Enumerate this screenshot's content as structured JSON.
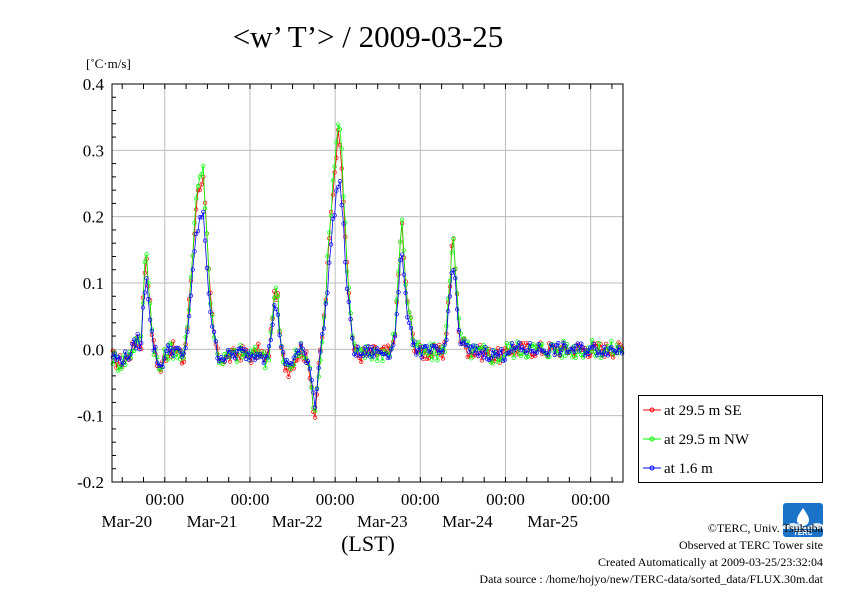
{
  "chart_data": {
    "type": "line",
    "title": "<w’ T’> / 2009-03-25",
    "ylabel": "[˚C·m/s]",
    "xlabel": "(LST)",
    "ylim": [
      -0.2,
      0.4
    ],
    "yticks": [
      "0.4",
      "0.3",
      "0.2",
      "0.1",
      "0.0",
      "-0.1",
      "-0.2"
    ],
    "ytick_values": [
      0.4,
      0.3,
      0.2,
      0.1,
      0.0,
      -0.1,
      -0.2
    ],
    "xlim_days": [
      19.38,
      25.38
    ],
    "xticks": [
      {
        "day": 20,
        "time": "00:00",
        "date": "Mar-20"
      },
      {
        "day": 21,
        "time": "00:00",
        "date": "Mar-21"
      },
      {
        "day": 22,
        "time": "00:00",
        "date": "Mar-22"
      },
      {
        "day": 23,
        "time": "00:00",
        "date": "Mar-23"
      },
      {
        "day": 24,
        "time": "00:00",
        "date": "Mar-24"
      },
      {
        "day": 25,
        "time": "00:00",
        "date": "Mar-25"
      }
    ],
    "grid": true,
    "legend_position": "right",
    "series": [
      {
        "name": "at 29.5 m SE",
        "color": "#ff0000"
      },
      {
        "name": "at 29.5 m NW",
        "color": "#00ff00"
      },
      {
        "name": "at 1.6 m",
        "color": "#0000ff"
      }
    ],
    "profile_points": [
      [
        19.38,
        -0.01
      ],
      [
        19.45,
        -0.02
      ],
      [
        19.55,
        -0.015
      ],
      [
        19.62,
        0.0
      ],
      [
        19.68,
        0.02
      ],
      [
        19.72,
        0.0
      ],
      [
        19.75,
        0.09
      ],
      [
        19.78,
        0.15
      ],
      [
        19.8,
        0.12
      ],
      [
        19.83,
        0.06
      ],
      [
        19.86,
        0.01
      ],
      [
        19.9,
        -0.01
      ],
      [
        19.93,
        -0.03
      ],
      [
        19.96,
        -0.03
      ],
      [
        20.0,
        -0.01
      ],
      [
        20.05,
        0.0
      ],
      [
        20.12,
        0.0
      ],
      [
        20.18,
        -0.01
      ],
      [
        20.22,
        -0.02
      ],
      [
        20.27,
        0.04
      ],
      [
        20.32,
        0.13
      ],
      [
        20.37,
        0.22
      ],
      [
        20.41,
        0.25
      ],
      [
        20.45,
        0.26
      ],
      [
        20.48,
        0.2
      ],
      [
        20.52,
        0.1
      ],
      [
        20.57,
        0.03
      ],
      [
        20.62,
        -0.01
      ],
      [
        20.7,
        -0.015
      ],
      [
        20.8,
        -0.01
      ],
      [
        20.9,
        -0.005
      ],
      [
        20.98,
        -0.01
      ],
      [
        21.05,
        -0.01
      ],
      [
        21.12,
        0.0
      ],
      [
        21.18,
        -0.02
      ],
      [
        21.23,
        0.0
      ],
      [
        21.26,
        0.05
      ],
      [
        21.29,
        0.08
      ],
      [
        21.32,
        0.09
      ],
      [
        21.36,
        0.0
      ],
      [
        21.4,
        -0.02
      ],
      [
        21.45,
        -0.03
      ],
      [
        21.5,
        -0.02
      ],
      [
        21.55,
        -0.01
      ],
      [
        21.6,
        0.0
      ],
      [
        21.65,
        -0.01
      ],
      [
        21.7,
        -0.03
      ],
      [
        21.73,
        -0.06
      ],
      [
        21.76,
        -0.11
      ],
      [
        21.8,
        -0.04
      ],
      [
        21.84,
        0.01
      ],
      [
        21.88,
        0.06
      ],
      [
        21.92,
        0.14
      ],
      [
        21.96,
        0.22
      ],
      [
        22.0,
        0.28
      ],
      [
        22.03,
        0.32
      ],
      [
        22.05,
        0.33
      ],
      [
        22.08,
        0.28
      ],
      [
        22.11,
        0.2
      ],
      [
        22.14,
        0.12
      ],
      [
        22.18,
        0.05
      ],
      [
        22.22,
        0.0
      ],
      [
        22.28,
        -0.01
      ],
      [
        22.38,
        -0.005
      ],
      [
        22.5,
        -0.005
      ],
      [
        22.6,
        -0.005
      ],
      [
        22.66,
        -0.005
      ],
      [
        22.7,
        0.03
      ],
      [
        22.73,
        0.07
      ],
      [
        22.75,
        0.13
      ],
      [
        22.77,
        0.17
      ],
      [
        22.79,
        0.2
      ],
      [
        22.81,
        0.12
      ],
      [
        22.84,
        0.08
      ],
      [
        22.88,
        0.05
      ],
      [
        22.91,
        0.02
      ],
      [
        22.95,
        0.0
      ],
      [
        23.0,
        -0.005
      ],
      [
        23.1,
        -0.005
      ],
      [
        23.2,
        -0.005
      ],
      [
        23.27,
        -0.005
      ],
      [
        23.3,
        0.02
      ],
      [
        23.33,
        0.07
      ],
      [
        23.36,
        0.12
      ],
      [
        23.38,
        0.18
      ],
      [
        23.4,
        0.15
      ],
      [
        23.43,
        0.08
      ],
      [
        23.46,
        0.02
      ],
      [
        23.5,
        0.01
      ],
      [
        23.55,
        0.0
      ],
      [
        23.65,
        -0.005
      ],
      [
        23.75,
        -0.005
      ],
      [
        23.85,
        -0.01
      ],
      [
        23.92,
        -0.01
      ],
      [
        24.0,
        -0.01
      ]
    ]
  },
  "legend": {
    "items": [
      "at 29.5 m SE",
      "at 29.5 m NW",
      "at 1.6 m"
    ]
  },
  "logo": {
    "text": "TERC"
  },
  "footer": {
    "copyright": "©TERC, Univ. Tsukuba",
    "observed": "Observed at TERC Tower site",
    "created": "Created Automatically at 2009-03-25/23:32:04",
    "source": "Data source : /home/hojyo/new/TERC-data/sorted_data/FLUX.30m.dat"
  }
}
